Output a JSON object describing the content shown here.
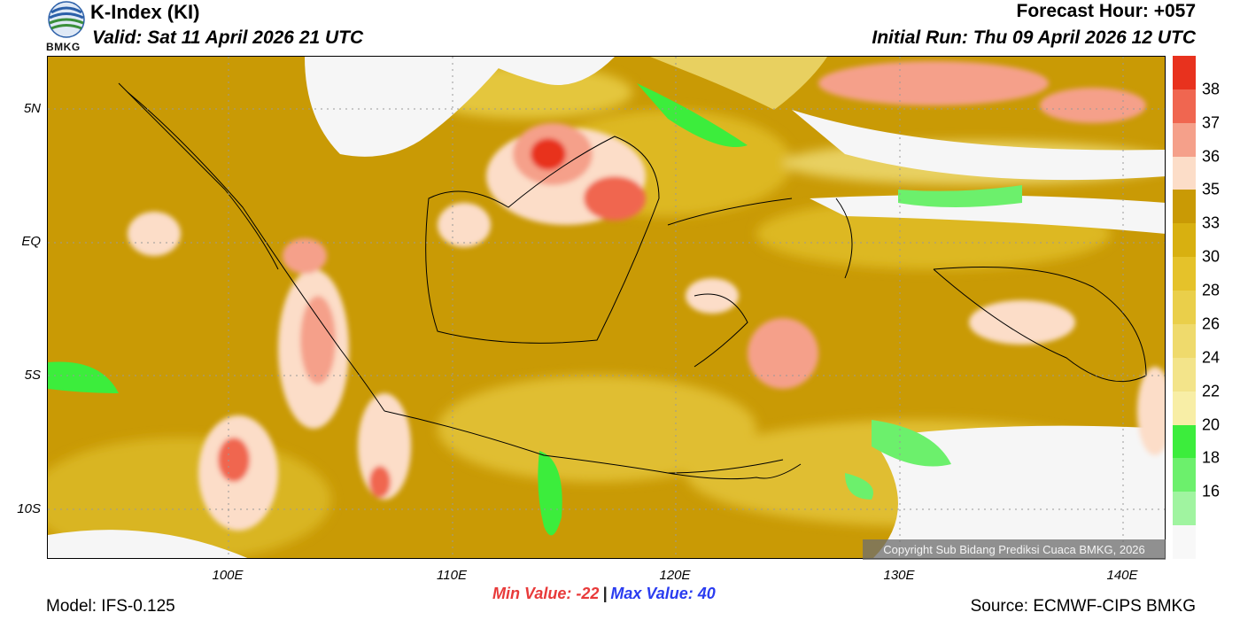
{
  "header": {
    "title": "K-Index (KI)",
    "valid": "Valid: Sat 11 April 2026 21 UTC",
    "forecast_hour": "Forecast Hour: +057",
    "initial_run": "Initial Run: Thu 09 April 2026 12 UTC",
    "logo_text": "BMKG"
  },
  "axes": {
    "lat_labels": [
      "5N",
      "EQ",
      "5S",
      "10S"
    ],
    "lon_labels": [
      "100E",
      "110E",
      "120E",
      "130E",
      "140E"
    ]
  },
  "colorbar": {
    "labels": [
      "38",
      "37",
      "36",
      "35",
      "33",
      "30",
      "28",
      "26",
      "24",
      "22",
      "20",
      "18",
      "16"
    ],
    "colors": [
      "#e8321e",
      "#f06650",
      "#f5a08a",
      "#fcddc8",
      "#c99a05",
      "#d8b010",
      "#e5c22a",
      "#eacf4a",
      "#efda6c",
      "#f3e48a",
      "#f8eea6",
      "#3ced3c",
      "#6cf06c",
      "#a0f4a0",
      "#f8f8f8"
    ]
  },
  "stats": {
    "min_label": "Min Value: -22",
    "separator": "|",
    "max_label": "Max Value:  40"
  },
  "footer": {
    "model": "Model: IFS-0.125",
    "source": "Source: ECMWF-CIPS BMKG",
    "copyright": "Copyright Sub Bidang Prediksi Cuaca BMKG, 2026"
  }
}
